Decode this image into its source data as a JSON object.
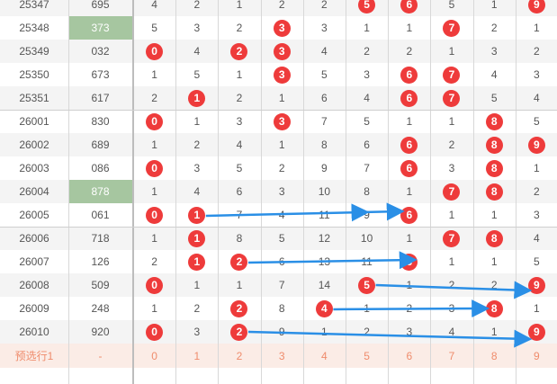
{
  "rows": [
    {
      "period": "25347",
      "award": "695",
      "hl": false,
      "cells": [
        {
          "v": "4",
          "b": false
        },
        {
          "v": "2",
          "b": false
        },
        {
          "v": "1",
          "b": false
        },
        {
          "v": "2",
          "b": false
        },
        {
          "v": "2",
          "b": false
        },
        {
          "v": "5",
          "b": true
        },
        {
          "v": "6",
          "b": true
        },
        {
          "v": "5",
          "b": false
        },
        {
          "v": "1",
          "b": false
        },
        {
          "v": "9",
          "b": true
        }
      ]
    },
    {
      "period": "25348",
      "award": "373",
      "hl": true,
      "cells": [
        {
          "v": "5",
          "b": false
        },
        {
          "v": "3",
          "b": false
        },
        {
          "v": "2",
          "b": false
        },
        {
          "v": "3",
          "b": true
        },
        {
          "v": "3",
          "b": false
        },
        {
          "v": "1",
          "b": false
        },
        {
          "v": "1",
          "b": false
        },
        {
          "v": "7",
          "b": true
        },
        {
          "v": "2",
          "b": false
        },
        {
          "v": "1",
          "b": false
        }
      ]
    },
    {
      "period": "25349",
      "award": "032",
      "hl": false,
      "cells": [
        {
          "v": "0",
          "b": true
        },
        {
          "v": "4",
          "b": false
        },
        {
          "v": "2",
          "b": true
        },
        {
          "v": "3",
          "b": true
        },
        {
          "v": "4",
          "b": false
        },
        {
          "v": "2",
          "b": false
        },
        {
          "v": "2",
          "b": false
        },
        {
          "v": "1",
          "b": false
        },
        {
          "v": "3",
          "b": false
        },
        {
          "v": "2",
          "b": false
        }
      ]
    },
    {
      "period": "25350",
      "award": "673",
      "hl": false,
      "cells": [
        {
          "v": "1",
          "b": false
        },
        {
          "v": "5",
          "b": false
        },
        {
          "v": "1",
          "b": false
        },
        {
          "v": "3",
          "b": true
        },
        {
          "v": "5",
          "b": false
        },
        {
          "v": "3",
          "b": false
        },
        {
          "v": "6",
          "b": true
        },
        {
          "v": "7",
          "b": true
        },
        {
          "v": "4",
          "b": false
        },
        {
          "v": "3",
          "b": false
        }
      ]
    },
    {
      "period": "25351",
      "award": "617",
      "hl": false,
      "cells": [
        {
          "v": "2",
          "b": false
        },
        {
          "v": "1",
          "b": true
        },
        {
          "v": "2",
          "b": false
        },
        {
          "v": "1",
          "b": false
        },
        {
          "v": "6",
          "b": false
        },
        {
          "v": "4",
          "b": false
        },
        {
          "v": "6",
          "b": true
        },
        {
          "v": "7",
          "b": true
        },
        {
          "v": "5",
          "b": false
        },
        {
          "v": "4",
          "b": false
        }
      ]
    },
    {
      "period": "26001",
      "award": "830",
      "hl": false,
      "cells": [
        {
          "v": "0",
          "b": true
        },
        {
          "v": "1",
          "b": false
        },
        {
          "v": "3",
          "b": false
        },
        {
          "v": "3",
          "b": true
        },
        {
          "v": "7",
          "b": false
        },
        {
          "v": "5",
          "b": false
        },
        {
          "v": "1",
          "b": false
        },
        {
          "v": "1",
          "b": false
        },
        {
          "v": "8",
          "b": true
        },
        {
          "v": "5",
          "b": false
        }
      ]
    },
    {
      "period": "26002",
      "award": "689",
      "hl": false,
      "cells": [
        {
          "v": "1",
          "b": false
        },
        {
          "v": "2",
          "b": false
        },
        {
          "v": "4",
          "b": false
        },
        {
          "v": "1",
          "b": false
        },
        {
          "v": "8",
          "b": false
        },
        {
          "v": "6",
          "b": false
        },
        {
          "v": "6",
          "b": true
        },
        {
          "v": "2",
          "b": false
        },
        {
          "v": "8",
          "b": true
        },
        {
          "v": "9",
          "b": true
        }
      ]
    },
    {
      "period": "26003",
      "award": "086",
      "hl": false,
      "cells": [
        {
          "v": "0",
          "b": true
        },
        {
          "v": "3",
          "b": false
        },
        {
          "v": "5",
          "b": false
        },
        {
          "v": "2",
          "b": false
        },
        {
          "v": "9",
          "b": false
        },
        {
          "v": "7",
          "b": false
        },
        {
          "v": "6",
          "b": true
        },
        {
          "v": "3",
          "b": false
        },
        {
          "v": "8",
          "b": true
        },
        {
          "v": "1",
          "b": false
        }
      ]
    },
    {
      "period": "26004",
      "award": "878",
      "hl": true,
      "cells": [
        {
          "v": "1",
          "b": false
        },
        {
          "v": "4",
          "b": false
        },
        {
          "v": "6",
          "b": false
        },
        {
          "v": "3",
          "b": false
        },
        {
          "v": "10",
          "b": false
        },
        {
          "v": "8",
          "b": false
        },
        {
          "v": "1",
          "b": false
        },
        {
          "v": "7",
          "b": true
        },
        {
          "v": "8",
          "b": true
        },
        {
          "v": "2",
          "b": false
        }
      ]
    },
    {
      "period": "26005",
      "award": "061",
      "hl": false,
      "cells": [
        {
          "v": "0",
          "b": true
        },
        {
          "v": "1",
          "b": true
        },
        {
          "v": "7",
          "b": false
        },
        {
          "v": "4",
          "b": false
        },
        {
          "v": "11",
          "b": false
        },
        {
          "v": "9",
          "b": false
        },
        {
          "v": "6",
          "b": true
        },
        {
          "v": "1",
          "b": false
        },
        {
          "v": "1",
          "b": false
        },
        {
          "v": "3",
          "b": false
        }
      ]
    },
    {
      "period": "26006",
      "award": "718",
      "hl": false,
      "cells": [
        {
          "v": "1",
          "b": false
        },
        {
          "v": "1",
          "b": true
        },
        {
          "v": "8",
          "b": false
        },
        {
          "v": "5",
          "b": false
        },
        {
          "v": "12",
          "b": false
        },
        {
          "v": "10",
          "b": false
        },
        {
          "v": "1",
          "b": false
        },
        {
          "v": "7",
          "b": true
        },
        {
          "v": "8",
          "b": true
        },
        {
          "v": "4",
          "b": false
        }
      ]
    },
    {
      "period": "26007",
      "award": "126",
      "hl": false,
      "cells": [
        {
          "v": "2",
          "b": false
        },
        {
          "v": "1",
          "b": true
        },
        {
          "v": "2",
          "b": true
        },
        {
          "v": "6",
          "b": false
        },
        {
          "v": "13",
          "b": false
        },
        {
          "v": "11",
          "b": false
        },
        {
          "v": "6",
          "b": true
        },
        {
          "v": "1",
          "b": false
        },
        {
          "v": "1",
          "b": false
        },
        {
          "v": "5",
          "b": false
        }
      ]
    },
    {
      "period": "26008",
      "award": "509",
      "hl": false,
      "cells": [
        {
          "v": "0",
          "b": true
        },
        {
          "v": "1",
          "b": false
        },
        {
          "v": "1",
          "b": false
        },
        {
          "v": "7",
          "b": false
        },
        {
          "v": "14",
          "b": false
        },
        {
          "v": "5",
          "b": true
        },
        {
          "v": "1",
          "b": false
        },
        {
          "v": "2",
          "b": false
        },
        {
          "v": "2",
          "b": false
        },
        {
          "v": "9",
          "b": true
        }
      ]
    },
    {
      "period": "26009",
      "award": "248",
      "hl": false,
      "cells": [
        {
          "v": "1",
          "b": false
        },
        {
          "v": "2",
          "b": false
        },
        {
          "v": "2",
          "b": true
        },
        {
          "v": "8",
          "b": false
        },
        {
          "v": "4",
          "b": true
        },
        {
          "v": "1",
          "b": false
        },
        {
          "v": "2",
          "b": false
        },
        {
          "v": "3",
          "b": false
        },
        {
          "v": "8",
          "b": true
        },
        {
          "v": "1",
          "b": false
        }
      ]
    },
    {
      "period": "26010",
      "award": "920",
      "hl": false,
      "cells": [
        {
          "v": "0",
          "b": true
        },
        {
          "v": "3",
          "b": false
        },
        {
          "v": "2",
          "b": true
        },
        {
          "v": "9",
          "b": false
        },
        {
          "v": "1",
          "b": false
        },
        {
          "v": "2",
          "b": false
        },
        {
          "v": "3",
          "b": false
        },
        {
          "v": "4",
          "b": false
        },
        {
          "v": "1",
          "b": false
        },
        {
          "v": "9",
          "b": true
        }
      ]
    }
  ],
  "preselect": {
    "label": "预选行1",
    "award": "-",
    "digits": [
      "0",
      "1",
      "2",
      "3",
      "4",
      "5",
      "6",
      "7",
      "8",
      "9"
    ]
  },
  "colors": {
    "ball": "#ee3b3b",
    "award_highlight": "#a6c6a0",
    "arrow": "#2a8fe6",
    "preselect_bg": "#fbece6",
    "preselect_text": "#ef8c6c"
  }
}
